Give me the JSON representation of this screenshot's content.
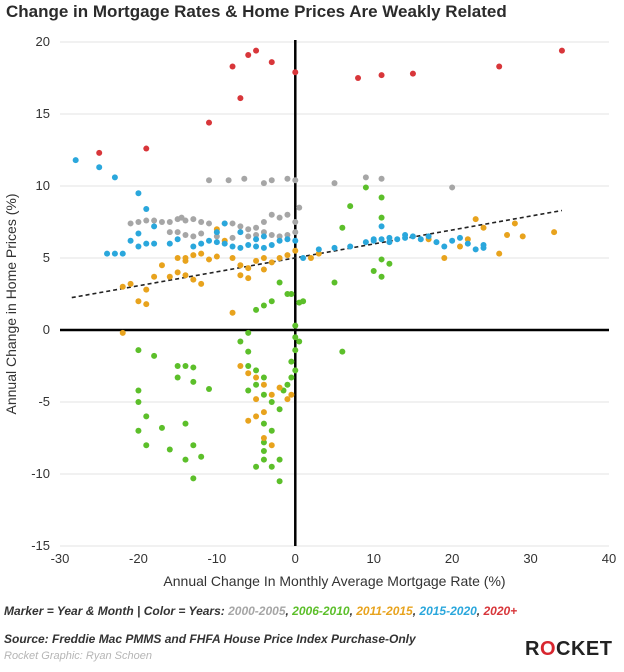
{
  "chart_data": {
    "type": "scatter",
    "title": "Change in Mortgage Rates & Home Prices Are Weakly Related",
    "xlabel": "Annual Change In Monthly Average Mortgage Rate (%)",
    "ylabel": "Annual Change in Home Prices (%)",
    "xlim": [
      -30,
      40
    ],
    "ylim": [
      -15,
      20
    ],
    "xticks": [
      -30,
      -20,
      -10,
      0,
      10,
      20,
      30,
      40
    ],
    "yticks": [
      -15,
      -10,
      -5,
      0,
      5,
      10,
      15,
      20
    ],
    "grid": "horizontal",
    "trendline": {
      "x": [
        -28.5,
        34
      ],
      "y": [
        2.25,
        8.3
      ],
      "style": "dashed"
    },
    "series": [
      {
        "name": "2000-2005",
        "color": "#a6a6a6",
        "points": [
          [
            -11,
            10.4
          ],
          [
            -8.5,
            10.4
          ],
          [
            -6.5,
            10.5
          ],
          [
            -4,
            10.2
          ],
          [
            -3,
            10.4
          ],
          [
            -1,
            10.5
          ],
          [
            0,
            10.4
          ],
          [
            5,
            10.2
          ],
          [
            9,
            10.6
          ],
          [
            11,
            10.5
          ],
          [
            20,
            9.9
          ],
          [
            -21,
            7.4
          ],
          [
            -20,
            7.5
          ],
          [
            -19,
            7.6
          ],
          [
            -18,
            7.6
          ],
          [
            -17,
            7.5
          ],
          [
            -16,
            7.5
          ],
          [
            -15,
            7.7
          ],
          [
            -14.5,
            7.8
          ],
          [
            -14,
            7.6
          ],
          [
            -13,
            7.7
          ],
          [
            -12,
            7.5
          ],
          [
            -11,
            7.4
          ],
          [
            -9,
            7.4
          ],
          [
            -8,
            7.4
          ],
          [
            -7,
            7.2
          ],
          [
            -6,
            7.0
          ],
          [
            -5,
            7.1
          ],
          [
            -4,
            7.5
          ],
          [
            -3,
            8.0
          ],
          [
            -2,
            7.8
          ],
          [
            -1,
            8.0
          ],
          [
            0,
            7.5
          ],
          [
            -16,
            6.8
          ],
          [
            -15,
            6.8
          ],
          [
            -14,
            6.6
          ],
          [
            -13,
            6.5
          ],
          [
            -12,
            6.7
          ],
          [
            -10,
            6.5
          ],
          [
            -8,
            6.4
          ],
          [
            -6,
            6.5
          ],
          [
            -5,
            6.6
          ],
          [
            -3,
            6.6
          ],
          [
            -2,
            6.5
          ],
          [
            -1,
            6.6
          ],
          [
            0,
            6.8
          ],
          [
            0.5,
            8.5
          ],
          [
            -4,
            6.8
          ]
        ]
      },
      {
        "name": "2006-2010",
        "color": "#5cbf2a",
        "points": [
          [
            9,
            9.9
          ],
          [
            11,
            9.2
          ],
          [
            11,
            7.8
          ],
          [
            11,
            4.9
          ],
          [
            12,
            4.6
          ],
          [
            10,
            4.1
          ],
          [
            11,
            3.7
          ],
          [
            7,
            8.6
          ],
          [
            6,
            7.1
          ],
          [
            5,
            3.3
          ],
          [
            1,
            2.0
          ],
          [
            0.5,
            1.9
          ],
          [
            -0.5,
            2.5
          ],
          [
            -2,
            3.3
          ],
          [
            -1,
            2.5
          ],
          [
            -3,
            2.0
          ],
          [
            -4,
            1.7
          ],
          [
            -5,
            1.4
          ],
          [
            -6,
            -0.2
          ],
          [
            -7,
            -0.8
          ],
          [
            0,
            0.3
          ],
          [
            0,
            -0.5
          ],
          [
            0.5,
            -0.8
          ],
          [
            0,
            -1.4
          ],
          [
            -0.5,
            -2.2
          ],
          [
            0,
            -2.8
          ],
          [
            -0.5,
            -3.3
          ],
          [
            -1,
            -3.8
          ],
          [
            -1.5,
            -4.2
          ],
          [
            6,
            -1.5
          ],
          [
            -20,
            -1.4
          ],
          [
            -18,
            -1.8
          ],
          [
            -15,
            -2.5
          ],
          [
            -14,
            -2.5
          ],
          [
            -13,
            -2.6
          ],
          [
            -15,
            -3.3
          ],
          [
            -13,
            -3.6
          ],
          [
            -11,
            -4.1
          ],
          [
            -20,
            -4.2
          ],
          [
            -20,
            -5.0
          ],
          [
            -19,
            -6.0
          ],
          [
            -17,
            -6.8
          ],
          [
            -20,
            -7.0
          ],
          [
            -19,
            -8.0
          ],
          [
            -16,
            -8.3
          ],
          [
            -14,
            -6.5
          ],
          [
            -13,
            -8.0
          ],
          [
            -12,
            -8.8
          ],
          [
            -14,
            -9.0
          ],
          [
            -13,
            -10.3
          ],
          [
            -6,
            -1.5
          ],
          [
            -6,
            -2.5
          ],
          [
            -5,
            -2.8
          ],
          [
            -4,
            -3.3
          ],
          [
            -5,
            -3.8
          ],
          [
            -6,
            -4.2
          ],
          [
            -4,
            -4.5
          ],
          [
            -3,
            -5.0
          ],
          [
            -2,
            -5.5
          ],
          [
            -4,
            -6.5
          ],
          [
            -3,
            -7.0
          ],
          [
            -4,
            -7.8
          ],
          [
            -4,
            -8.4
          ],
          [
            -4,
            -9.0
          ],
          [
            -5,
            -9.5
          ],
          [
            -3,
            -9.5
          ],
          [
            -2,
            -9.0
          ],
          [
            -2,
            -10.5
          ]
        ]
      },
      {
        "name": "2011-2015",
        "color": "#e8a31d",
        "points": [
          [
            -22,
            -0.2
          ],
          [
            -22,
            3.0
          ],
          [
            -21,
            3.2
          ],
          [
            -19,
            2.8
          ],
          [
            -20,
            2.0
          ],
          [
            -19,
            1.8
          ],
          [
            -18,
            3.7
          ],
          [
            -17,
            4.5
          ],
          [
            -15,
            5.0
          ],
          [
            -14,
            4.8
          ],
          [
            -13,
            5.2
          ],
          [
            -12,
            5.3
          ],
          [
            -11,
            4.9
          ],
          [
            -10,
            5.1
          ],
          [
            -9,
            6.2
          ],
          [
            -10,
            7.0
          ],
          [
            -8,
            5.0
          ],
          [
            -7,
            4.5
          ],
          [
            -6,
            4.3
          ],
          [
            -5,
            4.8
          ],
          [
            -4,
            5.0
          ],
          [
            -3,
            4.7
          ],
          [
            -2,
            5.0
          ],
          [
            -1,
            5.2
          ],
          [
            0,
            5.5
          ],
          [
            -4,
            4.2
          ],
          [
            -7,
            3.8
          ],
          [
            -6,
            3.6
          ],
          [
            -8,
            1.2
          ],
          [
            -7,
            -2.5
          ],
          [
            -6,
            -3.0
          ],
          [
            -5,
            -3.3
          ],
          [
            -4,
            -3.8
          ],
          [
            -3,
            -4.5
          ],
          [
            -2,
            -4.0
          ],
          [
            -5,
            -4.8
          ],
          [
            -4,
            -5.7
          ],
          [
            -5,
            -6.0
          ],
          [
            -6,
            -6.3
          ],
          [
            -4,
            -7.5
          ],
          [
            -3,
            -8.0
          ],
          [
            -1,
            -4.8
          ],
          [
            -0.5,
            -4.5
          ],
          [
            -16,
            3.7
          ],
          [
            -15,
            4.0
          ],
          [
            -14,
            3.8
          ],
          [
            -13,
            3.5
          ],
          [
            -12,
            3.2
          ],
          [
            -14,
            5.0
          ],
          [
            2,
            5.0
          ],
          [
            3,
            5.3
          ],
          [
            17,
            6.3
          ],
          [
            19,
            5.0
          ],
          [
            21,
            5.8
          ],
          [
            22,
            6.3
          ],
          [
            23,
            7.7
          ],
          [
            24,
            7.1
          ],
          [
            26,
            5.3
          ],
          [
            28,
            7.4
          ],
          [
            29,
            6.5
          ],
          [
            33,
            6.8
          ],
          [
            27,
            6.6
          ]
        ]
      },
      {
        "name": "2015-2020",
        "color": "#2aa7dc",
        "points": [
          [
            -28,
            11.8
          ],
          [
            -25,
            11.3
          ],
          [
            -23,
            10.6
          ],
          [
            -20,
            9.5
          ],
          [
            -19,
            8.4
          ],
          [
            -18,
            7.2
          ],
          [
            -20,
            6.7
          ],
          [
            -21,
            6.2
          ],
          [
            -19,
            6.0
          ],
          [
            -18,
            6.0
          ],
          [
            -20,
            5.8
          ],
          [
            -23,
            5.3
          ],
          [
            -24,
            5.3
          ],
          [
            -22,
            5.3
          ],
          [
            -16,
            6.0
          ],
          [
            -15,
            6.3
          ],
          [
            -13,
            5.8
          ],
          [
            -12,
            6.0
          ],
          [
            -11,
            6.2
          ],
          [
            -10,
            6.1
          ],
          [
            -9,
            6.0
          ],
          [
            -8,
            5.8
          ],
          [
            -7,
            5.7
          ],
          [
            -6,
            5.9
          ],
          [
            -5,
            5.8
          ],
          [
            -4,
            5.7
          ],
          [
            -3,
            5.9
          ],
          [
            -2,
            6.2
          ],
          [
            -1,
            6.3
          ],
          [
            0,
            6.2
          ],
          [
            1,
            5.0
          ],
          [
            3,
            5.6
          ],
          [
            5,
            5.7
          ],
          [
            7,
            5.8
          ],
          [
            9,
            6.1
          ],
          [
            10,
            6.2
          ],
          [
            11,
            6.3
          ],
          [
            12,
            6.4
          ],
          [
            13,
            6.3
          ],
          [
            14,
            6.4
          ],
          [
            15,
            6.5
          ],
          [
            16,
            6.3
          ],
          [
            17,
            6.5
          ],
          [
            18,
            6.1
          ],
          [
            19,
            5.8
          ],
          [
            20,
            6.2
          ],
          [
            21,
            6.4
          ],
          [
            22,
            6.0
          ],
          [
            23,
            5.6
          ],
          [
            24,
            5.9
          ],
          [
            24,
            5.7
          ],
          [
            10,
            6.3
          ],
          [
            -5,
            6.3
          ],
          [
            -7,
            6.8
          ],
          [
            -4,
            6.5
          ],
          [
            11,
            7.2
          ],
          [
            -10,
            6.8
          ],
          [
            -9,
            7.4
          ],
          [
            12,
            6.1
          ],
          [
            14,
            6.6
          ]
        ]
      },
      {
        "name": "2020+",
        "color": "#d8363a",
        "points": [
          [
            -25,
            12.3
          ],
          [
            -19,
            12.6
          ],
          [
            -11,
            14.4
          ],
          [
            -8,
            18.3
          ],
          [
            -7,
            16.1
          ],
          [
            -6,
            19.1
          ],
          [
            -5,
            19.4
          ],
          [
            -3,
            18.6
          ],
          [
            0,
            17.9
          ],
          [
            8,
            17.5
          ],
          [
            11,
            17.7
          ],
          [
            15,
            17.8
          ],
          [
            26,
            18.3
          ],
          [
            34,
            19.4
          ]
        ]
      }
    ]
  },
  "legend_text": {
    "prefix": "Marker = Year & Month | Color = Years: ",
    "items": [
      {
        "label": "2000-2005",
        "color": "#a6a6a6"
      },
      {
        "label": "2006-2010",
        "color": "#5cbf2a"
      },
      {
        "label": "2011-2015",
        "color": "#e8a31d"
      },
      {
        "label": "2015-2020",
        "color": "#2aa7dc"
      },
      {
        "label": "2020+",
        "color": "#d8363a"
      }
    ]
  },
  "source": "Source: Freddie Mac PMMS and FHFA House Price Index Purchase-Only",
  "credit": "Rocket Graphic: Ryan Schoen",
  "logo": {
    "before": "R",
    "o": "O",
    "after": "CKET"
  }
}
